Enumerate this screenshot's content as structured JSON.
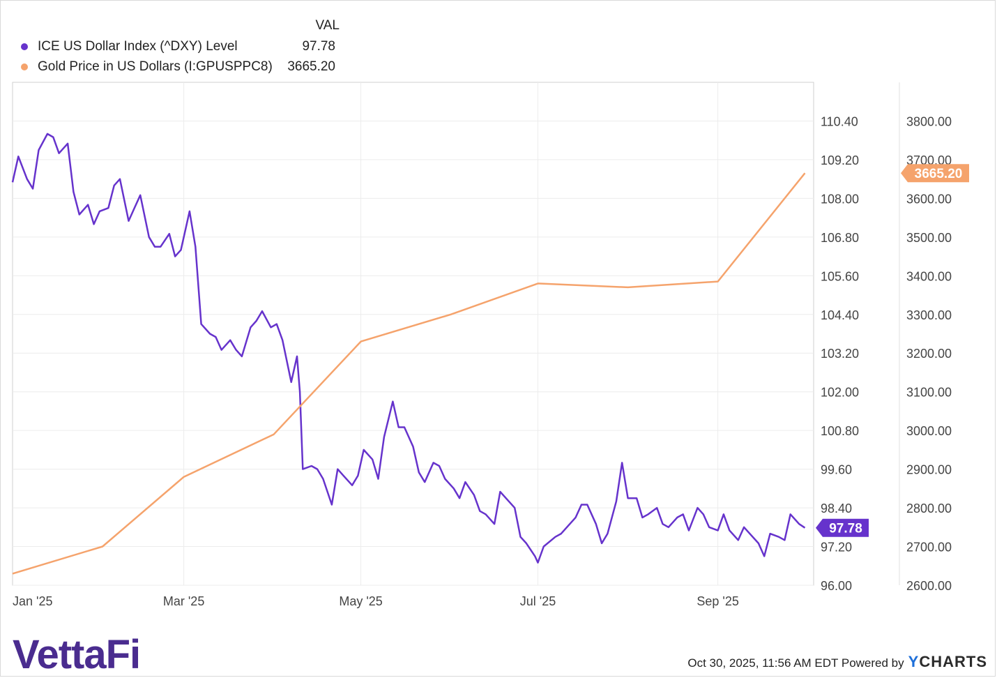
{
  "legend": {
    "header": "VAL",
    "items": [
      {
        "name": "ICE US Dollar Index (^DXY) Level",
        "value": "97.78",
        "color": "#6633cc"
      },
      {
        "name": "Gold Price in US Dollars (I:GPUSPPC8)",
        "value": "3665.20",
        "color": "#f5a36c"
      }
    ]
  },
  "chart_data": {
    "type": "line",
    "x_ticks": [
      "Jan '25",
      "Mar '25",
      "May '25",
      "Jul '25",
      "Sep '25"
    ],
    "y_left": {
      "ticks": [
        "110.40",
        "109.20",
        "108.00",
        "106.80",
        "105.60",
        "104.40",
        "103.20",
        "102.00",
        "100.80",
        "99.60",
        "98.40",
        "97.20",
        "96.00"
      ],
      "range": [
        96.0,
        111.6
      ]
    },
    "y_right": {
      "ticks": [
        "3800.00",
        "3700.00",
        "3600.00",
        "3500.00",
        "3400.00",
        "3300.00",
        "3200.00",
        "3100.00",
        "3000.00",
        "2900.00",
        "2800.00",
        "2700.00",
        "2600.00"
      ],
      "range": [
        2600,
        3900
      ]
    },
    "series": [
      {
        "name": "ICE US Dollar Index (^DXY) Level",
        "axis": "right",
        "color": "#6633cc",
        "last_label": "97.78",
        "points": [
          [
            "2025-01-01",
            108.5
          ],
          [
            "2025-01-03",
            109.3
          ],
          [
            "2025-01-06",
            108.6
          ],
          [
            "2025-01-08",
            108.3
          ],
          [
            "2025-01-10",
            109.5
          ],
          [
            "2025-01-13",
            110.0
          ],
          [
            "2025-01-15",
            109.9
          ],
          [
            "2025-01-17",
            109.4
          ],
          [
            "2025-01-20",
            109.7
          ],
          [
            "2025-01-22",
            108.2
          ],
          [
            "2025-01-24",
            107.5
          ],
          [
            "2025-01-27",
            107.8
          ],
          [
            "2025-01-29",
            107.2
          ],
          [
            "2025-01-31",
            107.6
          ],
          [
            "2025-02-03",
            107.7
          ],
          [
            "2025-02-05",
            108.4
          ],
          [
            "2025-02-07",
            108.6
          ],
          [
            "2025-02-10",
            107.3
          ],
          [
            "2025-02-12",
            107.7
          ],
          [
            "2025-02-14",
            108.1
          ],
          [
            "2025-02-17",
            106.8
          ],
          [
            "2025-02-19",
            106.5
          ],
          [
            "2025-02-21",
            106.5
          ],
          [
            "2025-02-24",
            106.9
          ],
          [
            "2025-02-26",
            106.2
          ],
          [
            "2025-02-28",
            106.4
          ],
          [
            "2025-03-03",
            107.6
          ],
          [
            "2025-03-05",
            106.5
          ],
          [
            "2025-03-07",
            104.1
          ],
          [
            "2025-03-10",
            103.8
          ],
          [
            "2025-03-12",
            103.7
          ],
          [
            "2025-03-14",
            103.3
          ],
          [
            "2025-03-17",
            103.6
          ],
          [
            "2025-03-19",
            103.3
          ],
          [
            "2025-03-21",
            103.1
          ],
          [
            "2025-03-24",
            104.0
          ],
          [
            "2025-03-26",
            104.2
          ],
          [
            "2025-03-28",
            104.5
          ],
          [
            "2025-03-31",
            104.0
          ],
          [
            "2025-04-02",
            104.1
          ],
          [
            "2025-04-04",
            103.6
          ],
          [
            "2025-04-07",
            102.3
          ],
          [
            "2025-04-09",
            103.1
          ],
          [
            "2025-04-10",
            102.0
          ],
          [
            "2025-04-11",
            99.6
          ],
          [
            "2025-04-14",
            99.7
          ],
          [
            "2025-04-16",
            99.6
          ],
          [
            "2025-04-18",
            99.3
          ],
          [
            "2025-04-21",
            98.5
          ],
          [
            "2025-04-23",
            99.6
          ],
          [
            "2025-04-25",
            99.4
          ],
          [
            "2025-04-28",
            99.1
          ],
          [
            "2025-04-30",
            99.4
          ],
          [
            "2025-05-02",
            100.2
          ],
          [
            "2025-05-05",
            99.9
          ],
          [
            "2025-05-07",
            99.3
          ],
          [
            "2025-05-09",
            100.6
          ],
          [
            "2025-05-12",
            101.7
          ],
          [
            "2025-05-14",
            100.9
          ],
          [
            "2025-05-16",
            100.9
          ],
          [
            "2025-05-19",
            100.3
          ],
          [
            "2025-05-21",
            99.5
          ],
          [
            "2025-05-23",
            99.2
          ],
          [
            "2025-05-26",
            99.8
          ],
          [
            "2025-05-28",
            99.7
          ],
          [
            "2025-05-30",
            99.3
          ],
          [
            "2025-06-02",
            99.0
          ],
          [
            "2025-06-04",
            98.7
          ],
          [
            "2025-06-06",
            99.2
          ],
          [
            "2025-06-09",
            98.8
          ],
          [
            "2025-06-11",
            98.3
          ],
          [
            "2025-06-13",
            98.2
          ],
          [
            "2025-06-16",
            97.9
          ],
          [
            "2025-06-18",
            98.9
          ],
          [
            "2025-06-20",
            98.7
          ],
          [
            "2025-06-23",
            98.4
          ],
          [
            "2025-06-25",
            97.5
          ],
          [
            "2025-06-27",
            97.3
          ],
          [
            "2025-06-30",
            96.9
          ],
          [
            "2025-07-01",
            96.7
          ],
          [
            "2025-07-03",
            97.2
          ],
          [
            "2025-07-07",
            97.5
          ],
          [
            "2025-07-09",
            97.6
          ],
          [
            "2025-07-11",
            97.8
          ],
          [
            "2025-07-14",
            98.1
          ],
          [
            "2025-07-16",
            98.5
          ],
          [
            "2025-07-18",
            98.5
          ],
          [
            "2025-07-21",
            97.9
          ],
          [
            "2025-07-23",
            97.3
          ],
          [
            "2025-07-25",
            97.6
          ],
          [
            "2025-07-28",
            98.6
          ],
          [
            "2025-07-30",
            99.8
          ],
          [
            "2025-08-01",
            98.7
          ],
          [
            "2025-08-04",
            98.7
          ],
          [
            "2025-08-06",
            98.1
          ],
          [
            "2025-08-08",
            98.2
          ],
          [
            "2025-08-11",
            98.4
          ],
          [
            "2025-08-13",
            97.9
          ],
          [
            "2025-08-15",
            97.8
          ],
          [
            "2025-08-18",
            98.1
          ],
          [
            "2025-08-20",
            98.2
          ],
          [
            "2025-08-22",
            97.7
          ],
          [
            "2025-08-25",
            98.4
          ],
          [
            "2025-08-27",
            98.2
          ],
          [
            "2025-08-29",
            97.8
          ],
          [
            "2025-09-01",
            97.7
          ],
          [
            "2025-09-03",
            98.2
          ],
          [
            "2025-09-05",
            97.7
          ],
          [
            "2025-09-08",
            97.4
          ],
          [
            "2025-09-10",
            97.8
          ],
          [
            "2025-09-12",
            97.6
          ],
          [
            "2025-09-15",
            97.3
          ],
          [
            "2025-09-17",
            96.9
          ],
          [
            "2025-09-19",
            97.6
          ],
          [
            "2025-09-22",
            97.5
          ],
          [
            "2025-09-24",
            97.4
          ],
          [
            "2025-09-26",
            98.2
          ],
          [
            "2025-09-29",
            97.9
          ],
          [
            "2025-10-01",
            97.78
          ]
        ]
      },
      {
        "name": "Gold Price in US Dollars (I:GPUSPPC8)",
        "axis": "far-right",
        "color": "#f5a36c",
        "last_label": "3665.20",
        "points": [
          [
            "2025-01-01",
            2630
          ],
          [
            "2025-02-01",
            2700
          ],
          [
            "2025-03-01",
            2880
          ],
          [
            "2025-04-01",
            2990
          ],
          [
            "2025-05-01",
            3230
          ],
          [
            "2025-06-01",
            3300
          ],
          [
            "2025-07-01",
            3380
          ],
          [
            "2025-08-01",
            3370
          ],
          [
            "2025-09-01",
            3385
          ],
          [
            "2025-10-01",
            3665.2
          ]
        ]
      }
    ],
    "grid": true,
    "legend_position": "top-left"
  },
  "footer": {
    "timestamp": "Oct 30, 2025, 11:56 AM EDT Powered by",
    "brand_y": "Y",
    "brand_rest": "CHARTS",
    "logo": "VettaFi"
  }
}
